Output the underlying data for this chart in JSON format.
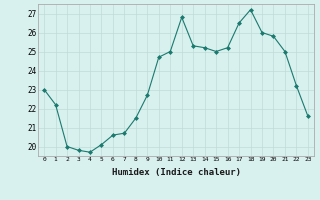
{
  "x": [
    0,
    1,
    2,
    3,
    4,
    5,
    6,
    7,
    8,
    9,
    10,
    11,
    12,
    13,
    14,
    15,
    16,
    17,
    18,
    19,
    20,
    21,
    22,
    23
  ],
  "y": [
    23.0,
    22.2,
    20.0,
    19.8,
    19.7,
    20.1,
    20.6,
    20.7,
    21.5,
    22.7,
    24.7,
    25.0,
    26.8,
    25.3,
    25.2,
    25.0,
    25.2,
    26.5,
    27.2,
    26.0,
    25.8,
    25.0,
    23.2,
    21.6
  ],
  "line_color": "#1a7a6e",
  "marker": "D",
  "marker_size": 2.0,
  "bg_color": "#d8f0ee",
  "grid_color": "#c0dbd8",
  "xlabel": "Humidex (Indice chaleur)",
  "ylim": [
    19.5,
    27.5
  ],
  "yticks": [
    20,
    21,
    22,
    23,
    24,
    25,
    26,
    27
  ],
  "xticks": [
    0,
    1,
    2,
    3,
    4,
    5,
    6,
    7,
    8,
    9,
    10,
    11,
    12,
    13,
    14,
    15,
    16,
    17,
    18,
    19,
    20,
    21,
    22,
    23
  ]
}
